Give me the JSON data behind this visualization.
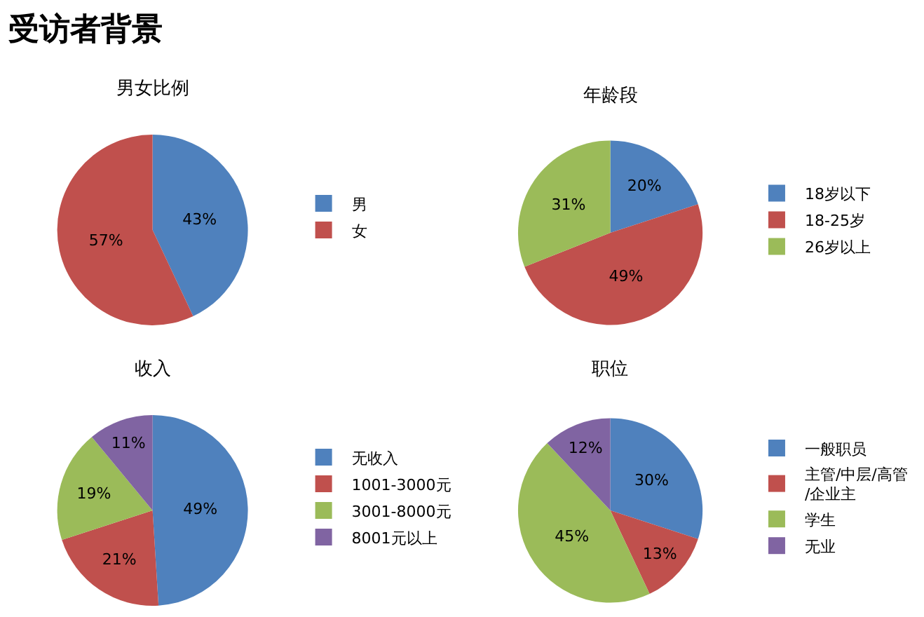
{
  "chart_data": [
    {
      "type": "other",
      "title": "受访者背景"
    },
    {
      "type": "pie",
      "title": "男女比例",
      "categories": [
        "男",
        "女"
      ],
      "values": [
        43,
        57
      ],
      "value_labels": [
        "43%",
        "57%"
      ],
      "colors": [
        "#4f81bd",
        "#c0504d"
      ],
      "legend": "right"
    },
    {
      "type": "pie",
      "title": "年龄段",
      "categories": [
        "18岁以下",
        "18-25岁",
        "26岁以上"
      ],
      "values": [
        20,
        49,
        31
      ],
      "value_labels": [
        "20%",
        "49%",
        "31%"
      ],
      "colors": [
        "#4f81bd",
        "#c0504d",
        "#9bbb59"
      ],
      "legend": "right"
    },
    {
      "type": "pie",
      "title": "收入",
      "categories": [
        "无收入",
        "1001-3000元",
        "3001-8000元",
        "8001元以上"
      ],
      "values": [
        49,
        21,
        19,
        11
      ],
      "value_labels": [
        "49%",
        "21%",
        "19%",
        "11%"
      ],
      "colors": [
        "#4f81bd",
        "#c0504d",
        "#9bbb59",
        "#8064a2"
      ],
      "legend": "right"
    },
    {
      "type": "pie",
      "title": "职位",
      "categories": [
        "一般职员",
        "主管/中层/高管\n/企业主",
        "学生",
        "无业"
      ],
      "values": [
        30,
        13,
        45,
        12
      ],
      "value_labels": [
        "30%",
        "13%",
        "45%",
        "12%"
      ],
      "colors": [
        "#4f81bd",
        "#c0504d",
        "#9bbb59",
        "#8064a2"
      ],
      "legend": "right"
    }
  ]
}
